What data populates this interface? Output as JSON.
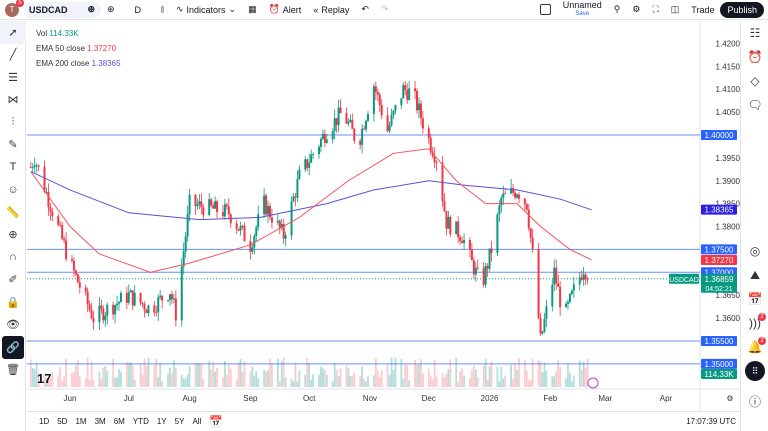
{
  "topbar": {
    "avatar_letter": "T",
    "avatar_badge": "5",
    "symbol": "USDCAD",
    "interval": "D",
    "indicators": "Indicators",
    "alert": "Alert",
    "replay": "Replay",
    "layout_name": "Unnamed",
    "save": "Save",
    "trade": "Trade",
    "publish": "Publish"
  },
  "legend": {
    "vol_label": "Vol",
    "vol_value": "114.33K",
    "ema50_label": "EMA 50 close",
    "ema50_value": "1.37270",
    "ema200_label": "EMA 200 close",
    "ema200_value": "1.38365"
  },
  "colors": {
    "up": "#089981",
    "down": "#f23645",
    "ema50": "#f7525f",
    "ema200": "#5b4fd6",
    "hline": "#2962ff",
    "price_tag": "#089981"
  },
  "right_sidebar": {
    "streams_badge": "2",
    "alerts_badge": "2"
  },
  "bottom": {
    "ranges": [
      "1D",
      "5D",
      "1M",
      "3M",
      "6M",
      "YTD",
      "1Y",
      "5Y",
      "All"
    ],
    "clock": "17:07:39 UTC"
  },
  "chart_data": {
    "type": "candlestick",
    "symbol": "USDCAD",
    "yticks": [
      "1.42000",
      "1.41500",
      "1.41000",
      "1.40500",
      "1.39500",
      "1.39000",
      "1.38500",
      "1.38000",
      "1.36500",
      "1.36000"
    ],
    "ylim": [
      1.348,
      1.4225
    ],
    "xticks": [
      [
        "Jun",
        "2025-06-01"
      ],
      [
        "Jul",
        "2025-07-01"
      ],
      [
        "Aug",
        "2025-08-01"
      ],
      [
        "Sep",
        "2025-09-01"
      ],
      [
        "Oct",
        "2025-10-01"
      ],
      [
        "Nov",
        "2025-11-01"
      ],
      [
        "Dec",
        "2025-12-01"
      ],
      [
        "2026",
        "2026-01-01"
      ],
      [
        "Feb",
        "2026-02-01"
      ],
      [
        "Mar",
        "2026-03-01"
      ],
      [
        "Apr",
        "2026-04-01"
      ]
    ],
    "close_path": [
      [
        "2025-05-12",
        1.393
      ],
      [
        "2025-05-14",
        1.395
      ],
      [
        "2025-06-01",
        1.372
      ],
      [
        "2025-06-13",
        1.36
      ],
      [
        "2025-07-01",
        1.365
      ],
      [
        "2025-07-12",
        1.362
      ],
      [
        "2025-07-22",
        1.366
      ],
      [
        "2025-07-25",
        1.361
      ],
      [
        "2025-08-01",
        1.385
      ],
      [
        "2025-08-21",
        1.383
      ],
      [
        "2025-09-01",
        1.376
      ],
      [
        "2025-09-08",
        1.385
      ],
      [
        "2025-09-18",
        1.378
      ],
      [
        "2025-09-26",
        1.391
      ],
      [
        "2025-10-10",
        1.401
      ],
      [
        "2025-10-18",
        1.405
      ],
      [
        "2025-10-26",
        1.398
      ],
      [
        "2025-11-03",
        1.411
      ],
      [
        "2025-11-10",
        1.401
      ],
      [
        "2025-11-18",
        1.41
      ],
      [
        "2025-11-23",
        1.409
      ],
      [
        "2025-12-01",
        1.399
      ],
      [
        "2025-12-05",
        1.395
      ],
      [
        "2025-12-10",
        1.381
      ],
      [
        "2025-12-18",
        1.378
      ],
      [
        "2025-12-23",
        1.372
      ],
      [
        "2025-12-28",
        1.367
      ],
      [
        "2026-01-02",
        1.375
      ],
      [
        "2026-01-07",
        1.386
      ],
      [
        "2026-01-15",
        1.388
      ],
      [
        "2026-01-20",
        1.385
      ],
      [
        "2026-01-24",
        1.37
      ],
      [
        "2026-01-27",
        1.355
      ],
      [
        "2026-02-03",
        1.37
      ],
      [
        "2026-02-08",
        1.36
      ],
      [
        "2026-02-13",
        1.366
      ],
      [
        "2026-02-18",
        1.371
      ],
      [
        "2026-02-22",
        1.36859
      ]
    ],
    "ema50": [
      [
        "2025-05-12",
        1.392
      ],
      [
        "2025-06-01",
        1.38
      ],
      [
        "2025-06-16",
        1.374
      ],
      [
        "2025-07-12",
        1.37
      ],
      [
        "2025-08-01",
        1.372
      ],
      [
        "2025-09-01",
        1.376
      ],
      [
        "2025-09-26",
        1.382
      ],
      [
        "2025-10-21",
        1.39
      ],
      [
        "2025-11-13",
        1.396
      ],
      [
        "2025-12-01",
        1.397
      ],
      [
        "2025-12-15",
        1.39
      ],
      [
        "2025-12-30",
        1.385
      ],
      [
        "2026-01-15",
        1.385
      ],
      [
        "2026-01-27",
        1.38
      ],
      [
        "2026-02-11",
        1.375
      ],
      [
        "2026-02-22",
        1.3727
      ]
    ],
    "ema200": [
      [
        "2025-05-12",
        1.392
      ],
      [
        "2025-06-01",
        1.388
      ],
      [
        "2025-07-01",
        1.383
      ],
      [
        "2025-08-06",
        1.3815
      ],
      [
        "2025-09-06",
        1.382
      ],
      [
        "2025-10-10",
        1.385
      ],
      [
        "2025-11-03",
        1.388
      ],
      [
        "2025-12-01",
        1.39
      ],
      [
        "2025-12-20",
        1.389
      ],
      [
        "2026-01-15",
        1.388
      ],
      [
        "2026-02-06",
        1.386
      ],
      [
        "2026-02-22",
        1.38365
      ]
    ],
    "horizontal_lines": [
      {
        "price": 1.4,
        "label": "1.40000"
      },
      {
        "price": 1.375,
        "label": "1.37500"
      },
      {
        "price": 1.37,
        "label": "1.37000"
      },
      {
        "price": 1.355,
        "label": "1.35500"
      },
      {
        "price": 1.35,
        "label": "1.35000"
      }
    ],
    "ema50_tag": "1.37270",
    "ema200_tag": "1.38365",
    "last_price": {
      "value": 1.36859,
      "label": "1.36859",
      "countdown": "04:52:21",
      "symbol": "USDCAD"
    },
    "volume_tag": "114.33K"
  }
}
